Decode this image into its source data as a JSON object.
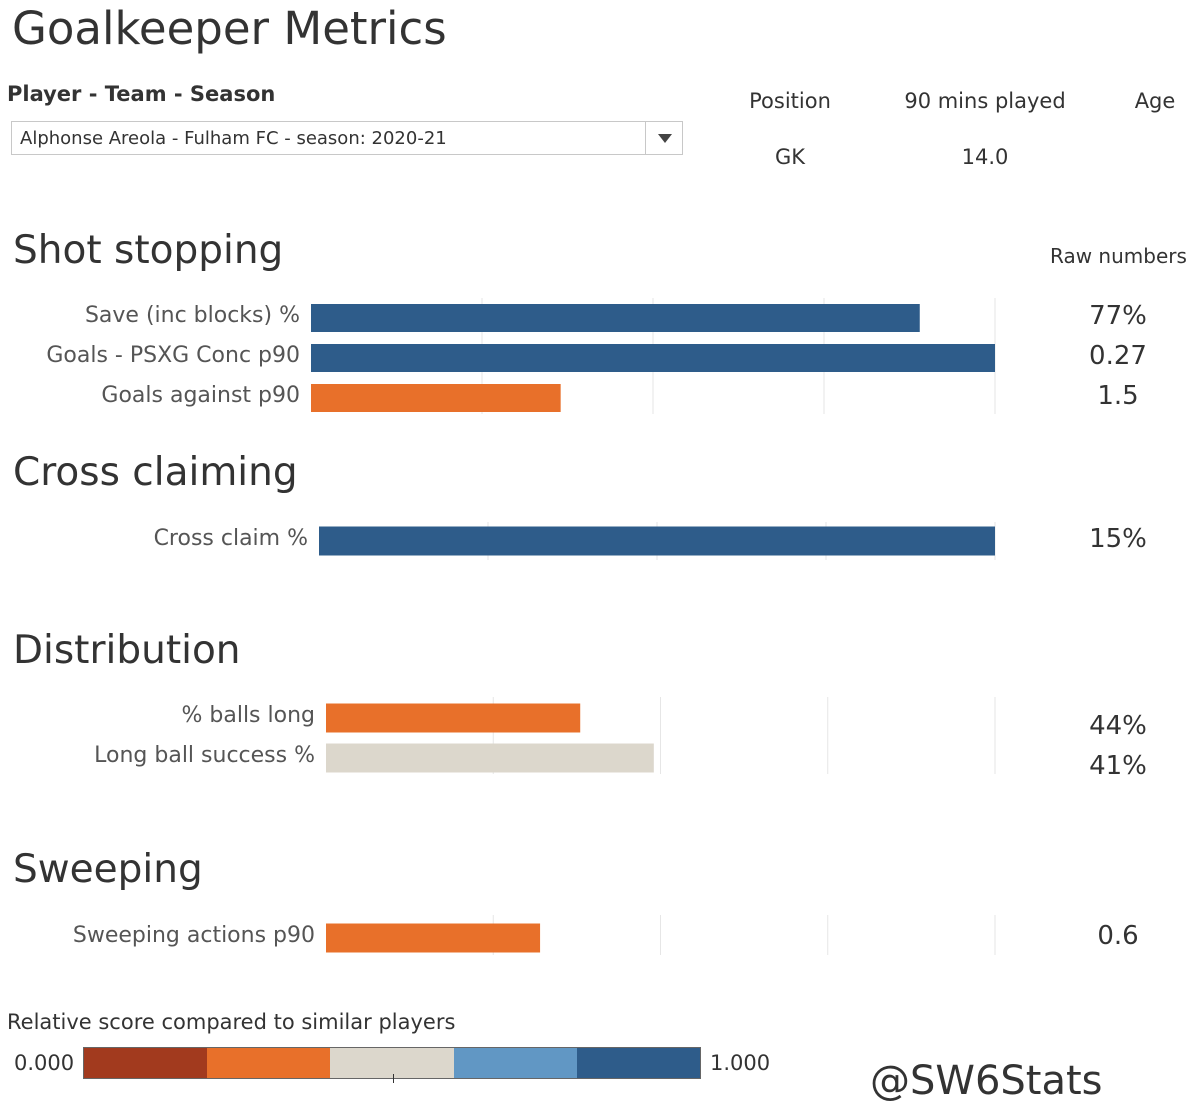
{
  "header": {
    "title": "Goalkeeper Metrics",
    "filter_label": "Player - Team - Season",
    "selected_player": "Alphonse Areola - Fulham FC - season: 2020-21"
  },
  "info": {
    "position_label": "Position",
    "position_value": "GK",
    "mins_label": "90 mins played",
    "mins_value": "14.0",
    "age_label": "Age",
    "age_value": ""
  },
  "raw_header": "Raw numbers",
  "colors": {
    "dark_blue": "#2e5c8a",
    "orange": "#e8702a",
    "beige": "#dcd7cc",
    "dark_red": "#a23a1e",
    "light_blue": "#6197c4"
  },
  "legend": {
    "title": "Relative score compared to similar players",
    "min": "0.000",
    "max": "1.000",
    "colors": [
      "#a23a1e",
      "#e8702a",
      "#dcd7cc",
      "#6197c4",
      "#2e5c8a"
    ]
  },
  "watermark": "@SW6Stats",
  "chart_data": [
    {
      "type": "bar",
      "title": "Shot stopping",
      "categories": [
        "Save (inc blocks) %",
        "Goals - PSXG Conc p90",
        "Goals against p90"
      ],
      "values": [
        0.89,
        1.0,
        0.365
      ],
      "raw": [
        "77%",
        "0.27",
        "1.5"
      ],
      "colors": [
        "#2e5c8a",
        "#2e5c8a",
        "#e8702a"
      ],
      "xlim": [
        0,
        1
      ]
    },
    {
      "type": "bar",
      "title": "Cross claiming",
      "categories": [
        "Cross claim %"
      ],
      "values": [
        1.0
      ],
      "raw": [
        "15%"
      ],
      "colors": [
        "#2e5c8a"
      ],
      "xlim": [
        0,
        1
      ]
    },
    {
      "type": "bar",
      "title": "Distribution",
      "categories": [
        "% balls long",
        "Long ball success %"
      ],
      "values": [
        0.38,
        0.49
      ],
      "raw": [
        "44%",
        "41%"
      ],
      "colors": [
        "#e8702a",
        "#dcd7cc"
      ],
      "xlim": [
        0,
        1
      ]
    },
    {
      "type": "bar",
      "title": "Sweeping",
      "categories": [
        "Sweeping actions p90"
      ],
      "values": [
        0.32
      ],
      "raw": [
        "0.6"
      ],
      "colors": [
        "#e8702a"
      ],
      "xlim": [
        0,
        1
      ]
    }
  ]
}
